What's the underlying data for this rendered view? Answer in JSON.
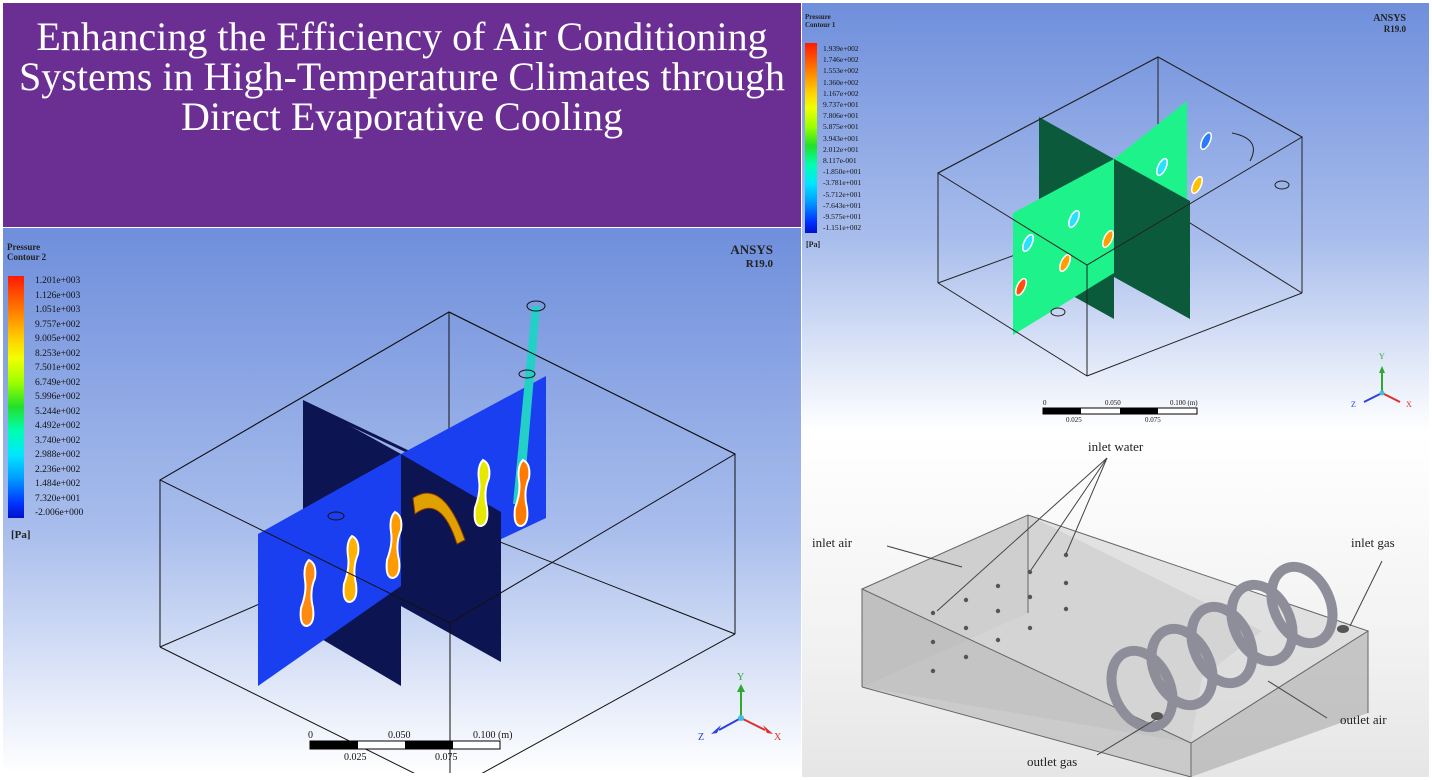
{
  "title": "Enhancing the Efficiency of Air Conditioning Systems in High-Temperature Climates through Direct Evaporative Cooling",
  "contour2": {
    "legend_title": "Pressure\nContour 2",
    "unit": "[Pa]",
    "ticks": [
      "1.201e+003",
      "1.126e+003",
      "1.051e+003",
      "9.757e+002",
      "9.005e+002",
      "8.253e+002",
      "7.501e+002",
      "6.749e+002",
      "5.996e+002",
      "5.244e+002",
      "4.492e+002",
      "3.740e+002",
      "2.988e+002",
      "2.236e+002",
      "1.484e+002",
      "7.320e+001",
      "-2.006e+000"
    ],
    "brand": "ANSYS",
    "version": "R19.0",
    "scale": {
      "top": [
        "0",
        "0.050",
        "0.100 (m)"
      ],
      "bottom": [
        "0.025",
        "0.075"
      ]
    },
    "axes": {
      "x": "X",
      "y": "Y",
      "z": "Z"
    }
  },
  "contour1": {
    "legend_title": "Pressure\nContour 1",
    "unit": "[Pa]",
    "ticks": [
      "1.939e+002",
      "1.746e+002",
      "1.553e+002",
      "1.360e+002",
      "1.167e+002",
      "9.737e+001",
      "7.806e+001",
      "5.875e+001",
      "3.943e+001",
      "2.012e+001",
      "8.117e-001",
      "-1.850e+001",
      "-3.781e+001",
      "-5.712e+001",
      "-7.643e+001",
      "-9.575e+001",
      "-1.151e+002"
    ],
    "brand": "ANSYS",
    "version": "R19.0",
    "scale": {
      "top": [
        "0",
        "0.050",
        "0.100 (m)"
      ],
      "bottom": [
        "0.025",
        "0.075"
      ]
    },
    "axes": {
      "x": "X",
      "y": "Y",
      "z": "Z"
    }
  },
  "model": {
    "labels": {
      "inlet_water": "inlet water",
      "inlet_air": "inlet air",
      "inlet_gas": "inlet gas",
      "outlet_air": "outlet air",
      "outlet_gas": "outlet gas"
    }
  },
  "colors": {
    "title_bg": "#6b2f93",
    "plane_blue": "#1a3ff0",
    "plane_navy": "#0d1452",
    "plane_green": "#1ef28a",
    "plane_darkgreen": "#0b5a3c"
  }
}
